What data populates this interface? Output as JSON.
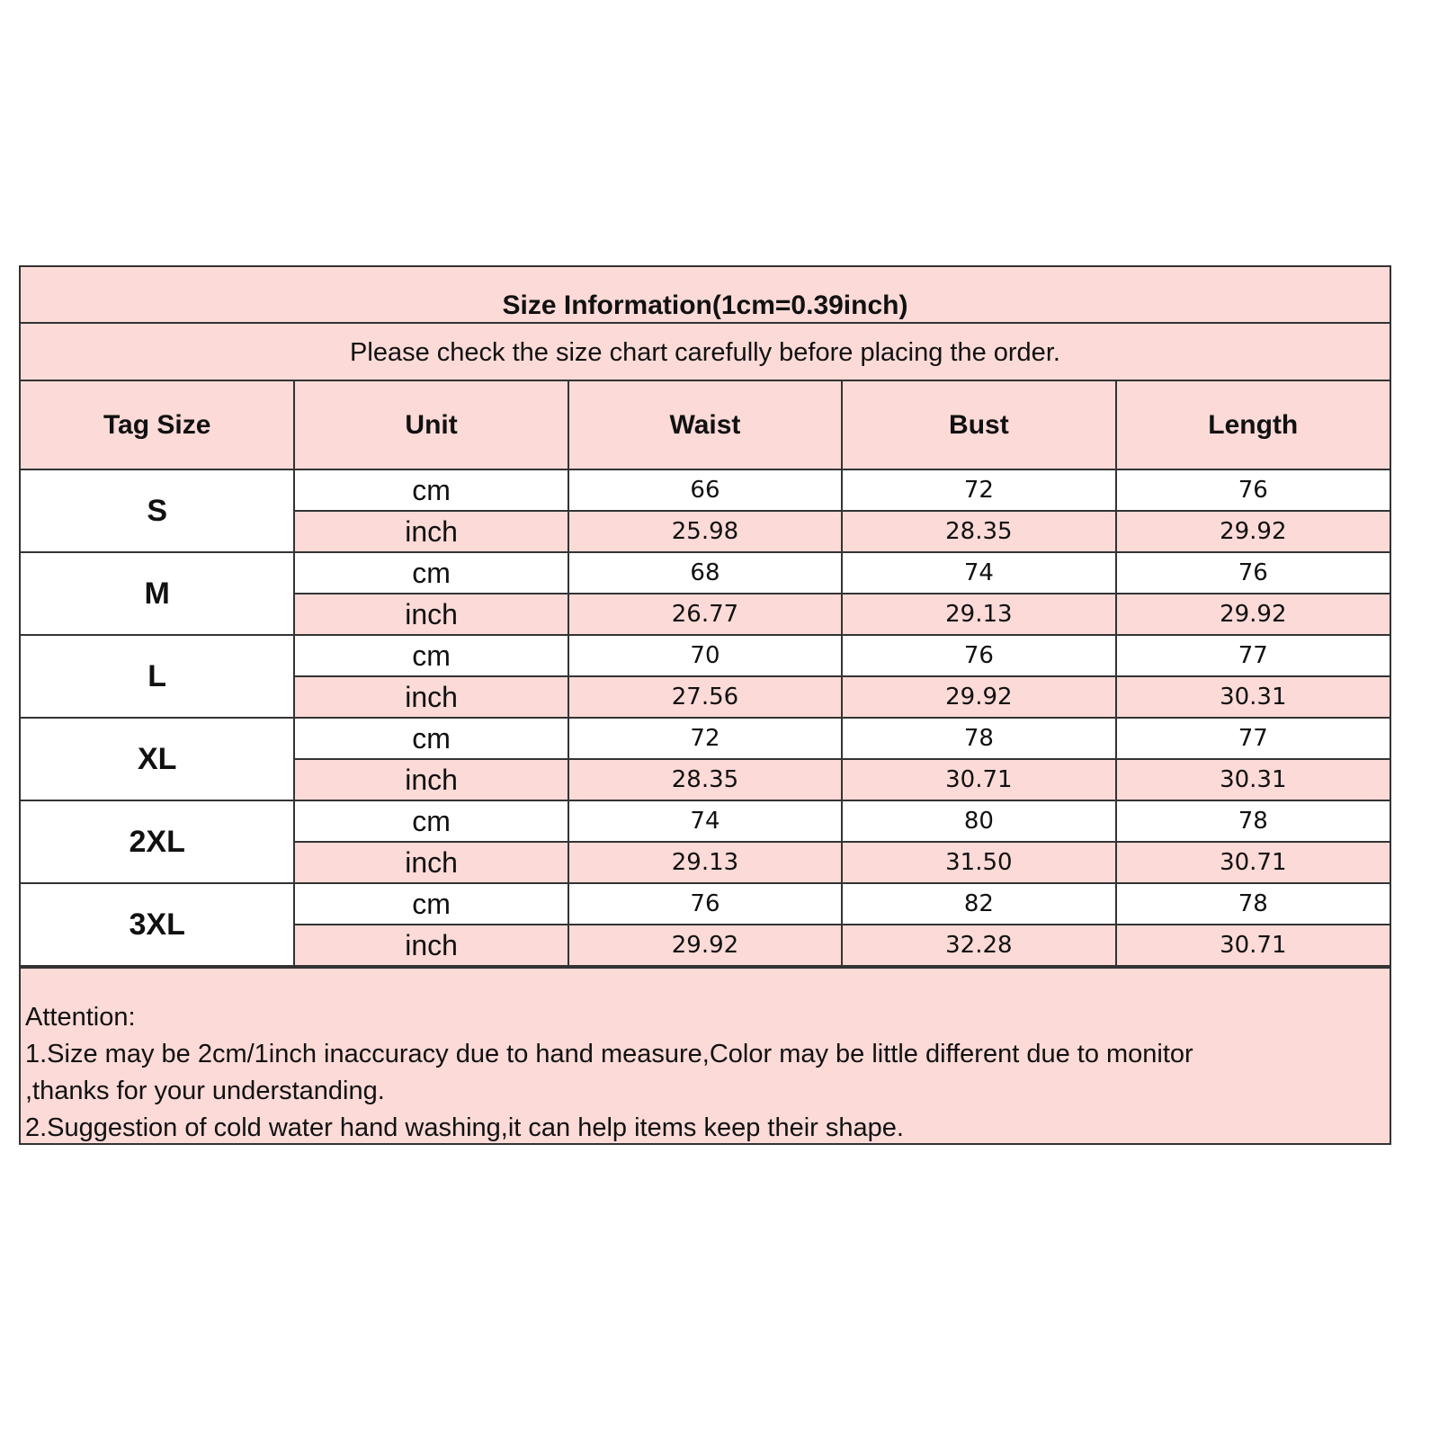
{
  "title": "Size Information(1cm=0.39inch)",
  "subtitle": "Please check the size chart carefully before placing the order.",
  "columns": [
    "Tag Size",
    "Unit",
    "Waist",
    "Bust",
    "Length"
  ],
  "colors": {
    "fill": "#fbdad7",
    "border": "#333333"
  },
  "sizes": [
    {
      "tag": "S",
      "cm": {
        "unit": "cm",
        "values": [
          "66",
          "72",
          "76"
        ]
      },
      "inch": {
        "unit": "inch",
        "values": [
          "25.98",
          "28.35",
          "29.92"
        ]
      }
    },
    {
      "tag": "M",
      "cm": {
        "unit": "cm",
        "values": [
          "68",
          "74",
          "76"
        ]
      },
      "inch": {
        "unit": "inch",
        "values": [
          "26.77",
          "29.13",
          "29.92"
        ]
      }
    },
    {
      "tag": "L",
      "cm": {
        "unit": "cm",
        "values": [
          "70",
          "76",
          "77"
        ]
      },
      "inch": {
        "unit": "inch",
        "values": [
          "27.56",
          "29.92",
          "30.31"
        ]
      }
    },
    {
      "tag": "XL",
      "cm": {
        "unit": "cm",
        "values": [
          "72",
          "78",
          "77"
        ]
      },
      "inch": {
        "unit": "inch",
        "values": [
          "28.35",
          "30.71",
          "30.31"
        ]
      }
    },
    {
      "tag": "2XL",
      "cm": {
        "unit": "cm",
        "values": [
          "74",
          "80",
          "78"
        ]
      },
      "inch": {
        "unit": "inch",
        "values": [
          "29.13",
          "31.50",
          "30.71"
        ]
      }
    },
    {
      "tag": "3XL",
      "cm": {
        "unit": "cm",
        "values": [
          "76",
          "82",
          "78"
        ]
      },
      "inch": {
        "unit": "inch",
        "values": [
          "29.92",
          "32.28",
          "30.71"
        ]
      }
    }
  ],
  "notes": {
    "heading": "Attention:",
    "lines": [
      "1.Size may be 2cm/1inch inaccuracy due to hand measure,Color may be little different due to monitor",
      ",thanks for your understanding.",
      "2.Suggestion of cold water hand washing,it can help items keep their shape."
    ]
  }
}
